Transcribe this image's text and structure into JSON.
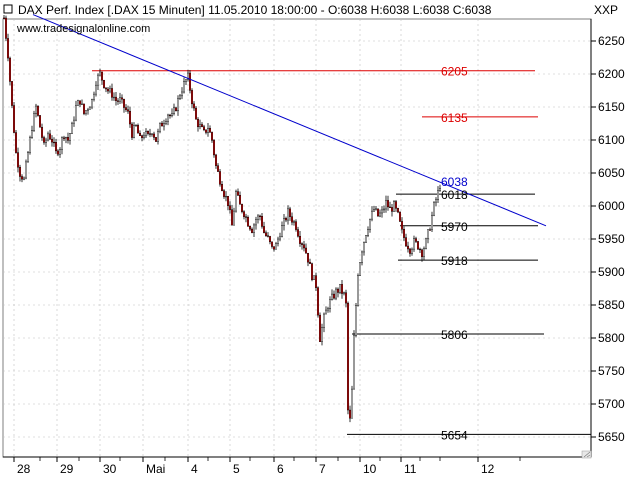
{
  "header": {
    "title": "DAX Perf. Index [.DAX  15 Minuten] 11.05.2010 18:00:00 - O:6038 H:6038 L:6038 C:6038",
    "symbol": "XXP",
    "website": "www.tradesignalonline.com"
  },
  "colors": {
    "trendline": "#0000cc",
    "resistance": "#dd0000",
    "support": "#000000",
    "candle_up": "#000000",
    "candle_down": "#cc0000",
    "grid": "#c0c0c0"
  },
  "chart_data": {
    "type": "candlestick",
    "title": "DAX Perf. Index [.DAX  15 Minuten]",
    "ylim": [
      5630,
      6290
    ],
    "y_ticks": [
      "6250",
      "6200",
      "6150",
      "6100",
      "6050",
      "6000",
      "5950",
      "5900",
      "5850",
      "5800",
      "5750",
      "5700",
      "5650"
    ],
    "x_ticks": [
      "28",
      "29",
      "30",
      "Mai",
      "4",
      "5",
      "6",
      "7",
      "10",
      "11",
      "12"
    ],
    "grid": true,
    "price_path": [
      [
        0,
        6270
      ],
      [
        4,
        6285
      ],
      [
        8,
        6230
      ],
      [
        12,
        6150
      ],
      [
        16,
        6080
      ],
      [
        20,
        6050
      ],
      [
        24,
        6040
      ],
      [
        28,
        6080
      ],
      [
        32,
        6120
      ],
      [
        36,
        6150
      ],
      [
        40,
        6120
      ],
      [
        44,
        6090
      ],
      [
        48,
        6110
      ],
      [
        52,
        6100
      ],
      [
        56,
        6080
      ],
      [
        60,
        6090
      ],
      [
        64,
        6110
      ],
      [
        68,
        6100
      ],
      [
        72,
        6120
      ],
      [
        76,
        6150
      ],
      [
        80,
        6160
      ],
      [
        84,
        6140
      ],
      [
        88,
        6150
      ],
      [
        92,
        6160
      ],
      [
        96,
        6190
      ],
      [
        100,
        6200
      ],
      [
        104,
        6185
      ],
      [
        108,
        6175
      ],
      [
        112,
        6170
      ],
      [
        116,
        6160
      ],
      [
        120,
        6160
      ],
      [
        124,
        6150
      ],
      [
        128,
        6140
      ],
      [
        132,
        6110
      ],
      [
        136,
        6120
      ],
      [
        140,
        6100
      ],
      [
        144,
        6110
      ],
      [
        148,
        6105
      ],
      [
        152,
        6115
      ],
      [
        156,
        6100
      ],
      [
        160,
        6120
      ],
      [
        164,
        6130
      ],
      [
        168,
        6140
      ],
      [
        172,
        6135
      ],
      [
        176,
        6150
      ],
      [
        180,
        6170
      ],
      [
        184,
        6185
      ],
      [
        188,
        6195
      ],
      [
        192,
        6160
      ],
      [
        196,
        6130
      ],
      [
        200,
        6120
      ],
      [
        204,
        6110
      ],
      [
        208,
        6120
      ],
      [
        212,
        6100
      ],
      [
        216,
        6060
      ],
      [
        220,
        6040
      ],
      [
        224,
        6020
      ],
      [
        228,
        6005
      ],
      [
        232,
        5970
      ],
      [
        236,
        6020
      ],
      [
        240,
        6000
      ],
      [
        244,
        5990
      ],
      [
        248,
        5975
      ],
      [
        252,
        5965
      ],
      [
        256,
        5980
      ],
      [
        260,
        5985
      ],
      [
        264,
        5960
      ],
      [
        268,
        5950
      ],
      [
        272,
        5935
      ],
      [
        276,
        5940
      ],
      [
        280,
        5960
      ],
      [
        284,
        5975
      ],
      [
        288,
        5990
      ],
      [
        292,
        5980
      ],
      [
        296,
        5970
      ],
      [
        300,
        5950
      ],
      [
        304,
        5940
      ],
      [
        308,
        5920
      ],
      [
        312,
        5895
      ],
      [
        316,
        5880
      ],
      [
        320,
        5800
      ],
      [
        324,
        5830
      ],
      [
        328,
        5850
      ],
      [
        332,
        5860
      ],
      [
        336,
        5870
      ],
      [
        340,
        5875
      ],
      [
        344,
        5865
      ],
      [
        346,
        5850
      ],
      [
        348,
        5690
      ],
      [
        350,
        5675
      ],
      [
        352,
        5720
      ],
      [
        354,
        5800
      ],
      [
        358,
        5900
      ],
      [
        362,
        5935
      ],
      [
        366,
        5960
      ],
      [
        370,
        5980
      ],
      [
        374,
        5995
      ],
      [
        378,
        5985
      ],
      [
        382,
        5990
      ],
      [
        386,
        6005
      ],
      [
        390,
        5995
      ],
      [
        394,
        6000
      ],
      [
        398,
        5985
      ],
      [
        402,
        5960
      ],
      [
        406,
        5945
      ],
      [
        410,
        5935
      ],
      [
        414,
        5945
      ],
      [
        418,
        5940
      ],
      [
        422,
        5930
      ],
      [
        426,
        5945
      ],
      [
        430,
        5970
      ],
      [
        434,
        6000
      ],
      [
        438,
        6020
      ],
      [
        441,
        6038
      ]
    ],
    "lines": [
      {
        "kind": "trendline",
        "from": [
          33,
          6290
        ],
        "to": [
          546,
          5970
        ]
      },
      {
        "kind": "resistance",
        "value": 6205,
        "label": "6205",
        "from_x": 92,
        "to_x": 535
      },
      {
        "kind": "resistance",
        "value": 6135,
        "label": "6135",
        "from_x": 422,
        "to_x": 538
      },
      {
        "kind": "level",
        "value": 6038,
        "label": "6038"
      },
      {
        "kind": "support",
        "value": 6018,
        "label": "6018",
        "from_x": 396,
        "to_x": 535
      },
      {
        "kind": "support",
        "value": 5970,
        "label": "5970",
        "from_x": 400,
        "to_x": 538
      },
      {
        "kind": "support",
        "value": 5918,
        "label": "5918",
        "from_x": 398,
        "to_x": 538
      },
      {
        "kind": "support",
        "value": 5806,
        "label": "5806",
        "from_x": 352,
        "to_x": 544
      },
      {
        "kind": "support",
        "value": 5654,
        "label": "5654",
        "from_x": 347,
        "to_x": 591
      }
    ]
  }
}
